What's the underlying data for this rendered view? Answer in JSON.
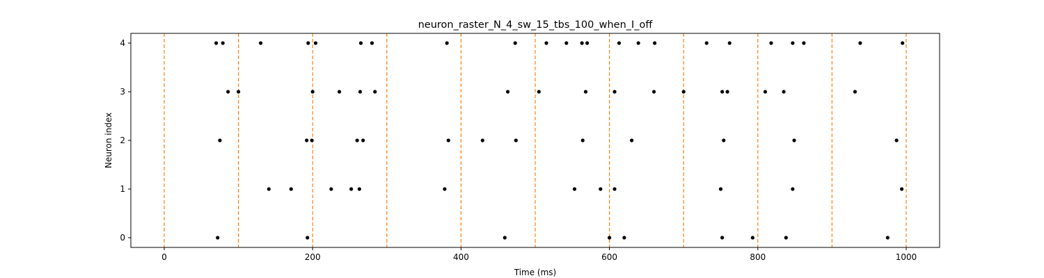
{
  "chart_data": {
    "type": "scatter",
    "title": "neuron_raster_N_4_sw_15_tbs_100_when_I_off",
    "xlabel": "Time (ms)",
    "ylabel": "Neuron index",
    "xlim": [
      -45,
      1045
    ],
    "ylim": [
      -0.2,
      4.2
    ],
    "x_ticks": [
      0,
      200,
      400,
      600,
      800,
      1000
    ],
    "y_ticks": [
      0,
      1,
      2,
      3,
      4
    ],
    "grid": false,
    "marker_color": "#000000",
    "vline_color": "#ff7f0e",
    "vlines": [
      0,
      100,
      200,
      300,
      400,
      500,
      600,
      700,
      800,
      900,
      1000
    ],
    "series": [
      {
        "neuron": 4,
        "x": [
          70,
          79,
          130,
          194,
          204,
          265,
          280,
          381,
          473,
          515,
          542,
          563,
          570,
          613,
          639,
          661,
          731,
          762,
          818,
          847,
          862,
          938,
          995
        ]
      },
      {
        "neuron": 3,
        "x": [
          86,
          100,
          200,
          236,
          264,
          284,
          463,
          505,
          568,
          607,
          660,
          700,
          752,
          759,
          810,
          835,
          931
        ]
      },
      {
        "neuron": 2,
        "x": [
          75,
          192,
          199,
          260,
          268,
          383,
          429,
          474,
          564,
          630,
          754,
          849,
          987
        ]
      },
      {
        "neuron": 1,
        "x": [
          141,
          171,
          225,
          252,
          263,
          378,
          553,
          588,
          607,
          750,
          847,
          994
        ]
      },
      {
        "neuron": 0,
        "x": [
          72,
          193,
          459,
          600,
          620,
          752,
          793,
          838,
          975
        ]
      }
    ]
  }
}
